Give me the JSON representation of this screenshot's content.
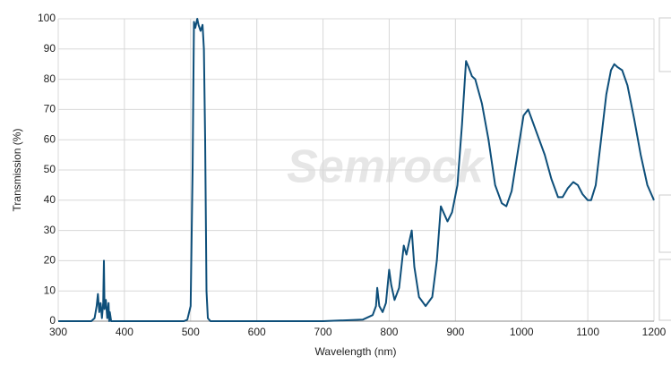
{
  "chart_data": {
    "type": "line",
    "xlabel": "Wavelength (nm)",
    "ylabel": "Transmission (%)",
    "watermark": "Semrock",
    "x": [
      300,
      350,
      355,
      358,
      360,
      362,
      364,
      366,
      368,
      369,
      370,
      372,
      374,
      376,
      377,
      378,
      380,
      400,
      490,
      495,
      500,
      503,
      505,
      507,
      510,
      512,
      515,
      518,
      520,
      522,
      524,
      526,
      530,
      700,
      760,
      775,
      780,
      782,
      785,
      790,
      795,
      800,
      803,
      808,
      815,
      822,
      826,
      830,
      834,
      838,
      845,
      855,
      865,
      872,
      878,
      882,
      888,
      895,
      903,
      910,
      916,
      920,
      925,
      930,
      940,
      950,
      960,
      970,
      977,
      985,
      995,
      1003,
      1010,
      1015,
      1025,
      1035,
      1045,
      1055,
      1062,
      1070,
      1078,
      1085,
      1092,
      1100,
      1105,
      1112,
      1120,
      1128,
      1135,
      1140,
      1145,
      1152,
      1160,
      1170,
      1180,
      1190,
      1200
    ],
    "series": [
      {
        "name": "Transmission",
        "color": "#0e4f7a",
        "values": [
          0,
          0,
          1,
          5,
          9,
          3,
          6,
          1,
          6,
          20,
          4,
          7,
          1,
          6,
          0,
          3,
          0,
          0,
          0,
          0.5,
          5,
          50,
          99,
          97,
          100,
          98,
          96,
          98,
          90,
          60,
          10,
          1,
          0,
          0,
          0.5,
          2,
          5,
          11,
          5,
          3,
          6,
          17,
          12,
          7,
          11,
          25,
          22,
          26,
          30,
          18,
          8,
          5,
          8,
          20,
          38,
          36,
          33,
          36,
          45,
          65,
          86,
          84,
          81,
          80,
          72,
          60,
          45,
          39,
          38,
          43,
          57,
          68,
          70,
          67,
          61,
          55,
          47,
          41,
          41,
          44,
          46,
          45,
          42,
          40,
          40,
          45,
          60,
          75,
          83,
          85,
          84,
          83,
          78,
          67,
          55,
          45,
          40
        ]
      }
    ],
    "xlim": [
      300,
      1200
    ],
    "xticks": [
      300,
      400,
      500,
      600,
      700,
      800,
      900,
      1000,
      1100,
      1200
    ],
    "ylim": [
      0,
      100
    ],
    "yticks": [
      0,
      10,
      20,
      30,
      40,
      50,
      60,
      70,
      80,
      90,
      100
    ],
    "grid": true
  }
}
